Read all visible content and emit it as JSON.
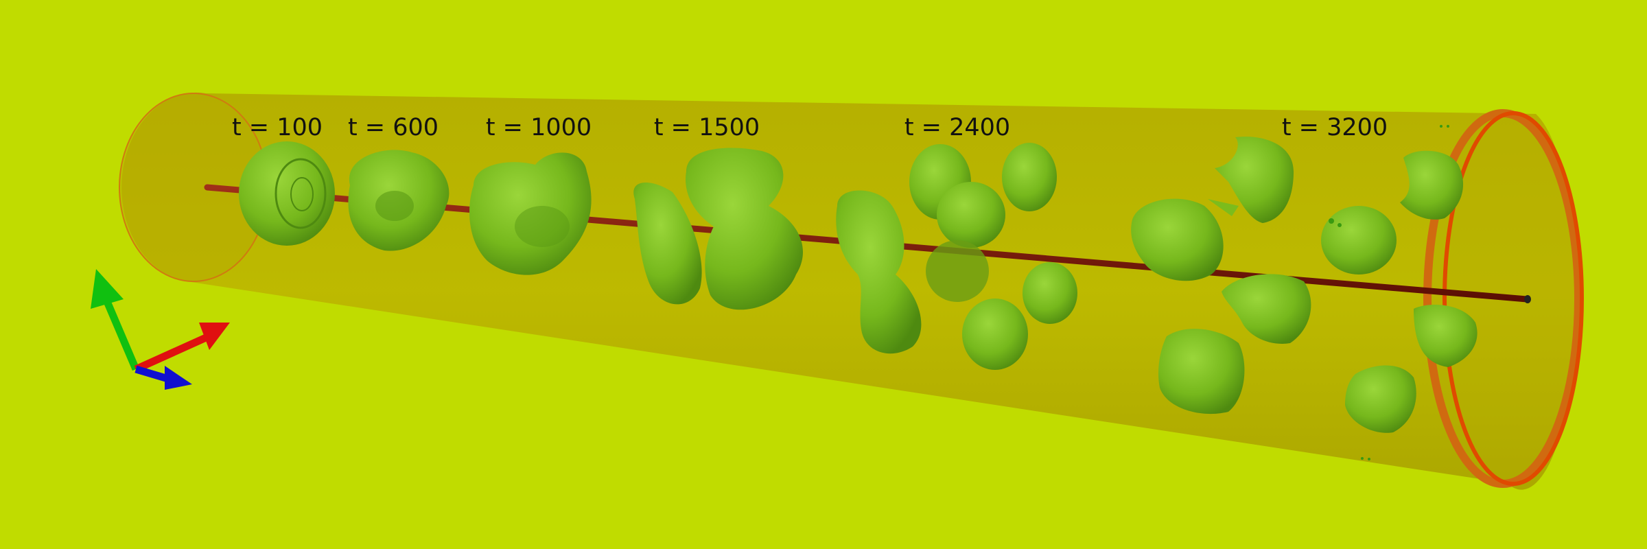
{
  "scene": {
    "background_color": "#c0dc00",
    "tube_color": "#b8ac00",
    "rim_color": "#e04a00",
    "axis_rod_color": "#7a1a0a",
    "blob_color": "#7cbc1c",
    "blob_shadow_color": "#4e8a10"
  },
  "time_labels": [
    {
      "text": "t = 100"
    },
    {
      "text": "t = 600"
    },
    {
      "text": "t = 1000"
    },
    {
      "text": "t = 1500"
    },
    {
      "text": "t = 2400"
    },
    {
      "text": "t = 3200"
    }
  ],
  "axes_triad": {
    "x_axis_color": "#e01010",
    "y_axis_color": "#10c010",
    "z_axis_color": "#1010d0"
  }
}
